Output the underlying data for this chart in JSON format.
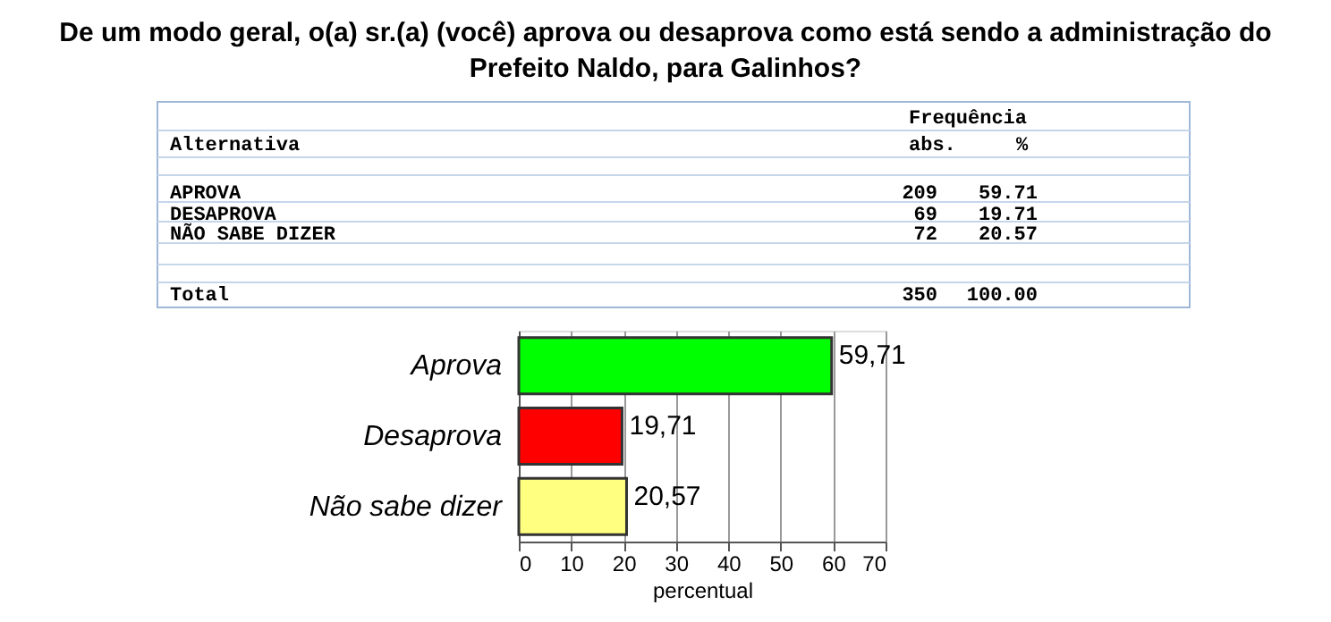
{
  "chart_data": {
    "type": "bar",
    "orientation": "horizontal",
    "title": "De um modo geral, o(a) sr.(a) (você) aprova ou desaprova como está sendo a administração do Prefeito Naldo, para Galinhos?",
    "categories": [
      "Aprova",
      "Desaprova",
      "Não sabe dizer"
    ],
    "values": [
      59.71,
      19.71,
      20.57
    ],
    "value_labels": [
      "59,71",
      "19,71",
      "20,57"
    ],
    "colors": [
      "#00ff00",
      "#ff0000",
      "#ffff80"
    ],
    "xlabel": "percentual",
    "xlim": [
      0,
      70
    ],
    "xticks": [
      0,
      10,
      20,
      30,
      40,
      50,
      60,
      70
    ],
    "grid": "x",
    "annotations": [
      "Frequência",
      "Alternativa",
      "abs.",
      "%",
      "APROVA",
      "209",
      "59.71",
      "DESAPROVA",
      "69",
      "19.71",
      "NÃO SABE DIZER",
      "72",
      "20.57",
      "Total",
      "350",
      "100.00"
    ]
  }
}
